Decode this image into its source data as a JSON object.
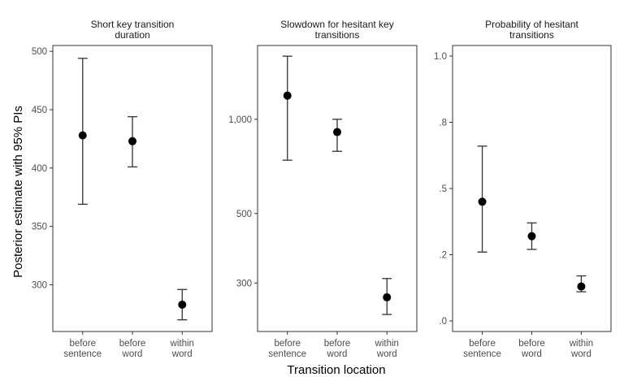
{
  "chart_data": {
    "type": "scatter",
    "subtype": "point-with-error-bars",
    "ylabel": "Posterior estimate with 95% PIs",
    "xlabel": "Transition location",
    "categories": [
      [
        "before",
        "sentence"
      ],
      [
        "before",
        "word"
      ],
      [
        "within",
        "word"
      ]
    ],
    "grid": false,
    "point_color": "#000000",
    "panels": [
      {
        "title": [
          "Short key transition",
          "duration"
        ],
        "scale": "linear",
        "ylim": [
          260,
          505
        ],
        "yticks": [
          300,
          350,
          400,
          450,
          500
        ],
        "ytick_labels": [
          "300",
          "350",
          "400",
          "450",
          "500"
        ],
        "estimate": [
          428,
          423,
          283
        ],
        "lower": [
          369,
          401,
          270
        ],
        "upper": [
          494,
          444,
          296
        ]
      },
      {
        "title": [
          "Slowdown for hesitant key",
          "transitions"
        ],
        "scale": "log",
        "ylim": [
          210,
          1720
        ],
        "yticks": [
          300,
          500,
          1000
        ],
        "ytick_labels": [
          "300",
          "500",
          "1,000"
        ],
        "estimate": [
          1190,
          910,
          270
        ],
        "lower": [
          740,
          790,
          238
        ],
        "upper": [
          1590,
          1000,
          310
        ]
      },
      {
        "title": [
          "Probability of hesitant",
          "transitions"
        ],
        "scale": "linear",
        "ylim": [
          -0.04,
          1.04
        ],
        "yticks": [
          0.0,
          0.25,
          0.5,
          0.75,
          1.0
        ],
        "ytick_labels": [
          ".0",
          ".2",
          ".5",
          ".8",
          "1.0"
        ],
        "estimate": [
          0.45,
          0.32,
          0.13
        ],
        "lower": [
          0.26,
          0.27,
          0.11
        ],
        "upper": [
          0.66,
          0.37,
          0.17
        ]
      }
    ]
  }
}
